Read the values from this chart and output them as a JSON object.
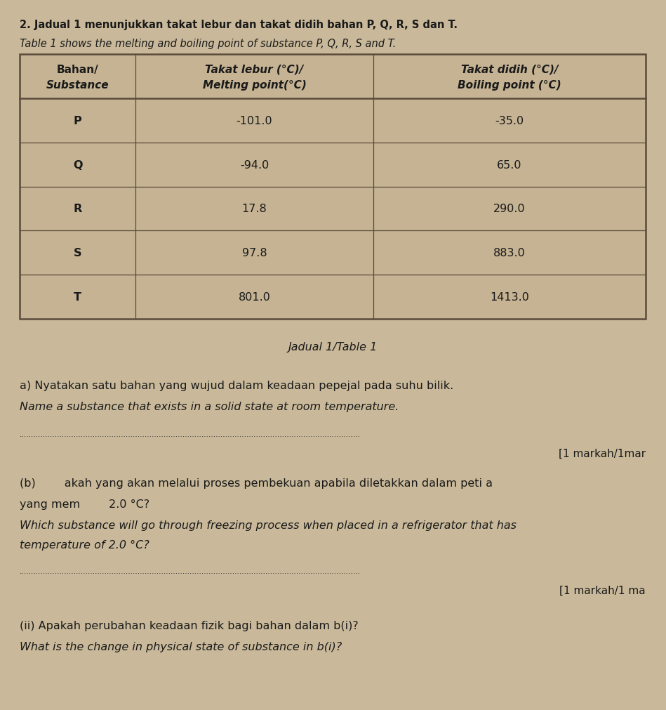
{
  "background_color": "#c9b99a",
  "title_line1": "2. Jadual 1 menunjukkan takat lebur dan takat didih bahan P, Q, R, S dan T.",
  "title_line2": "Table 1 shows the melting and boiling point of substance P, Q, R, S and T.",
  "table_caption": "Jadual 1/Table 1",
  "col_headers": [
    [
      "Bahan/",
      "Substance"
    ],
    [
      "Takat lebur (°C)/",
      "Melting point(°C)"
    ],
    [
      "Takat didih (°C)/",
      "Boiling point (°C)"
    ]
  ],
  "substances": [
    "P",
    "Q",
    "R",
    "S",
    "T"
  ],
  "melting_points": [
    "-101.0",
    "-94.0",
    "17.8",
    "97.8",
    "801.0"
  ],
  "boiling_points": [
    "-35.0",
    "65.0",
    "290.0",
    "883.0",
    "1413.0"
  ],
  "question_a_line1": "a) Nyatakan satu bahan yang wujud dalam keadaan pepejal pada suhu bilik.",
  "question_a_line2": "Name a substance that exists in a solid state at room temperature.",
  "marks_a": "[1 markah/1mar",
  "question_b_line1": "(b)        akah yang akan melalui proses pembekuan apabila diletakkan dalam peti a",
  "question_b_line2": "yang mem        2.0 °C?",
  "question_b_line3": "Which substance will go through freezing process when placed in a refrigerator that has",
  "question_b_line4": "temperature of 2.0 °C?",
  "marks_b": "[1 markah/1 ma",
  "question_bii_line1": "(ii) Apakah perubahan keadaan fizik bagi bahan dalam b(i)?",
  "question_bii_line2": "What is the change in physical state of substance in b(i)?",
  "dotted_line_a": "................................................................................................................................................",
  "dotted_line_b": "................................................................................................................................................",
  "table_border_color": "#5a4a3a",
  "cell_fill": "#c5b393"
}
